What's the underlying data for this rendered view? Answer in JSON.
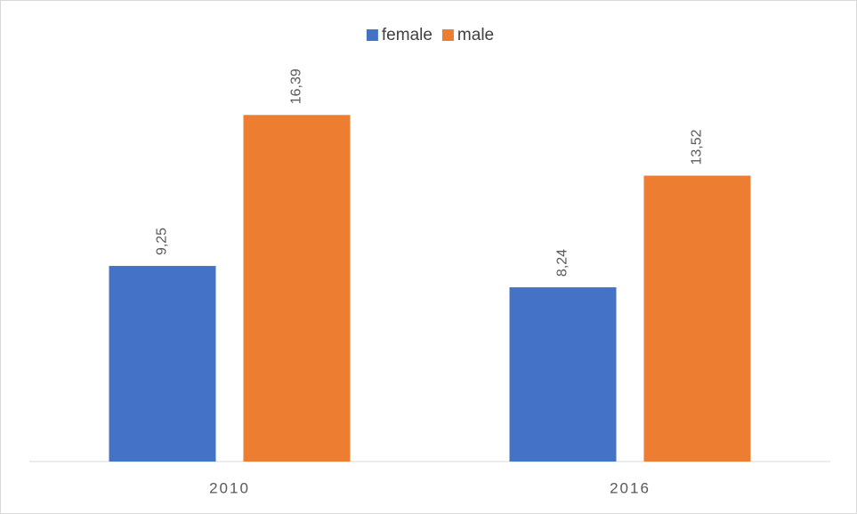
{
  "chart_data": {
    "type": "bar",
    "categories": [
      "2010",
      "2016"
    ],
    "series": [
      {
        "name": "female",
        "color": "#4472c4",
        "values": [
          9.25,
          8.24
        ],
        "value_labels": [
          "9,25",
          "8,24"
        ]
      },
      {
        "name": "male",
        "color": "#ed7d31",
        "values": [
          16.39,
          13.52
        ],
        "value_labels": [
          "16,39",
          "13,52"
        ]
      }
    ],
    "ylim": [
      0,
      18
    ],
    "legend": "top"
  }
}
